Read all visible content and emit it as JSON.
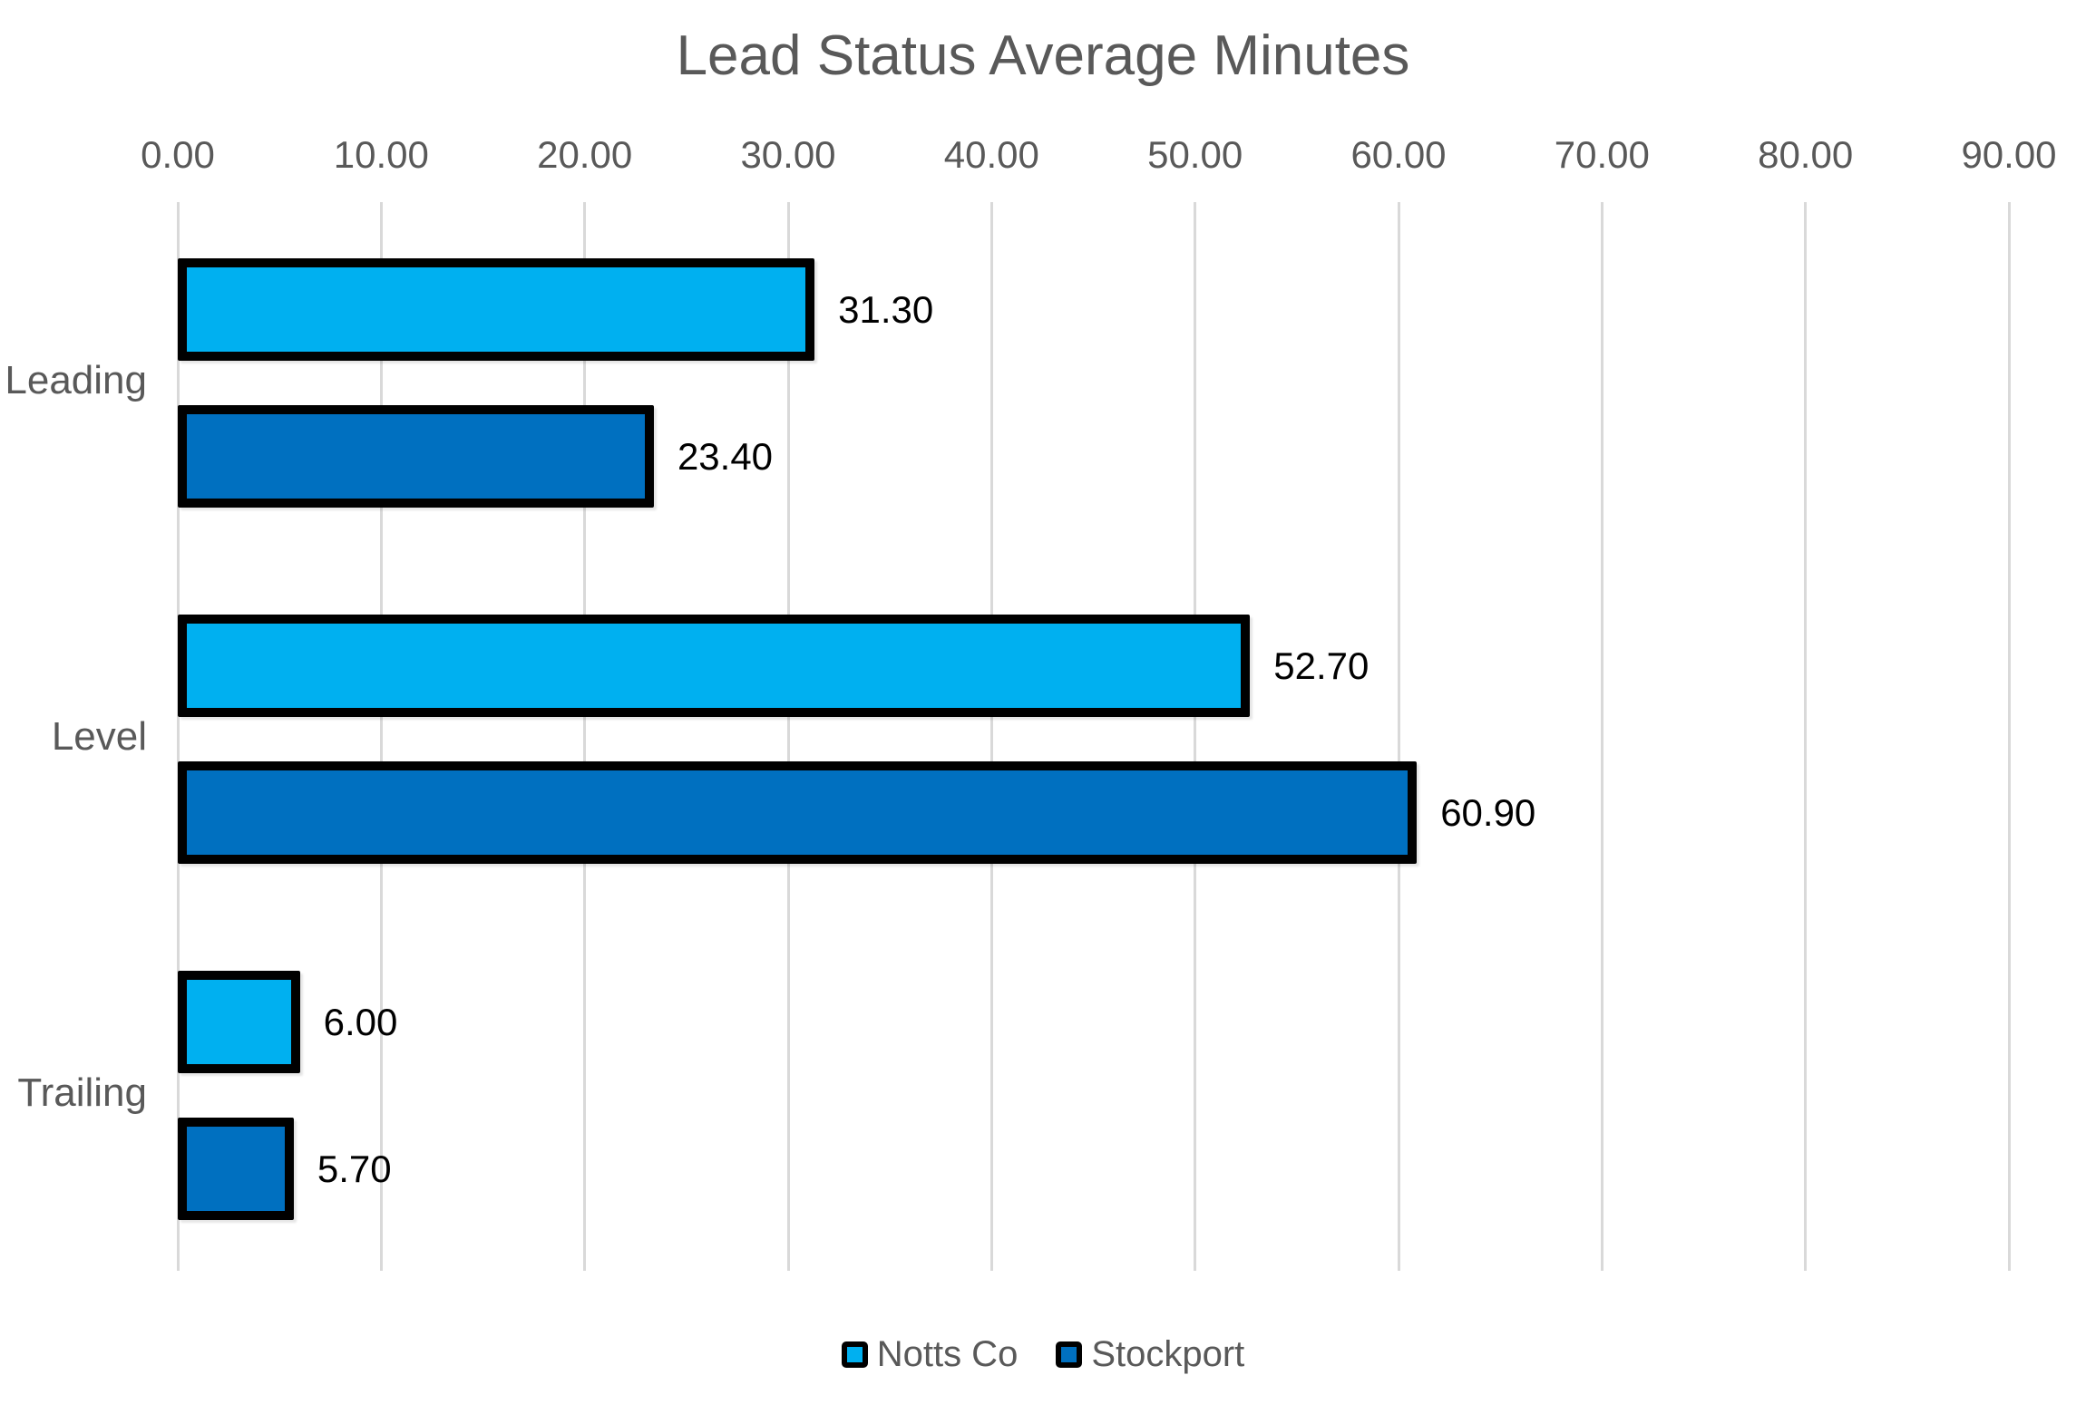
{
  "chart_data": {
    "type": "bar",
    "orientation": "horizontal",
    "title": "Lead Status Average Minutes",
    "categories": [
      "Leading",
      "Level",
      "Trailing"
    ],
    "series": [
      {
        "name": "Notts Co",
        "color": "#00B0F0",
        "values": [
          31.3,
          52.7,
          6.0
        ],
        "labels": [
          "31.30",
          "52.70",
          "6.00"
        ]
      },
      {
        "name": "Stockport",
        "color": "#0070C0",
        "values": [
          23.4,
          60.9,
          5.7
        ],
        "labels": [
          "23.40",
          "60.90",
          "5.70"
        ]
      }
    ],
    "x_axis": {
      "position": "top",
      "min": 0,
      "max": 90,
      "tick_interval": 10,
      "tick_labels": [
        "0.00",
        "10.00",
        "20.00",
        "30.00",
        "40.00",
        "50.00",
        "60.00",
        "70.00",
        "80.00",
        "90.00"
      ]
    },
    "grid": "vertical",
    "legend": {
      "position": "bottom",
      "entries": [
        "Notts Co",
        "Stockport"
      ]
    },
    "style": {
      "background": "#FFFFFF",
      "title_color": "#595959",
      "axis_text_color": "#595959",
      "category_text_color": "#595959",
      "value_label_color": "#000000",
      "legend_text_color": "#595959",
      "gridline_color": "#D9D9D9",
      "bar_outline_color": "#000000"
    }
  }
}
